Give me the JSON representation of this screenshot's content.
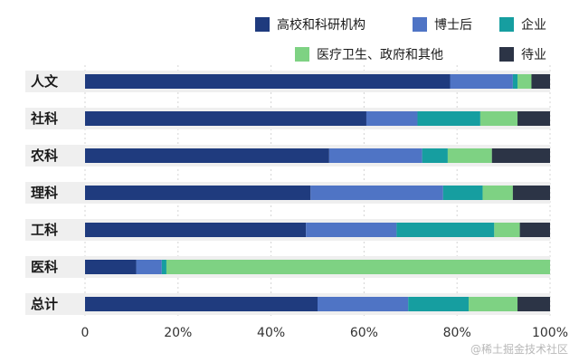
{
  "chart_data": {
    "type": "bar",
    "orientation": "horizontal",
    "stacked": true,
    "normalized": true,
    "categories": [
      "人文",
      "社科",
      "农科",
      "理科",
      "工科",
      "医科",
      "总计"
    ],
    "series": [
      {
        "name": "高校和科研机构",
        "color": "#1f3b7e",
        "values": [
          78.5,
          60.5,
          52.5,
          48.5,
          47.5,
          11,
          50
        ]
      },
      {
        "name": "博士后",
        "color": "#4f74c5",
        "values": [
          13.5,
          11,
          20,
          28.5,
          19.5,
          5.5,
          19.5
        ]
      },
      {
        "name": "企业",
        "color": "#169ea0",
        "values": [
          1,
          13.5,
          5.5,
          8.5,
          21,
          1,
          13
        ]
      },
      {
        "name": "医疗卫生、政府和其他",
        "color": "#7ed283",
        "values": [
          3,
          8,
          9.5,
          6.5,
          5.5,
          82.5,
          10.5
        ]
      },
      {
        "name": "待业",
        "color": "#2c3446",
        "values": [
          4,
          7,
          12.5,
          8,
          6.5,
          0,
          7
        ]
      }
    ],
    "x_ticks": [
      "0",
      "20%",
      "40%",
      "60%",
      "80%",
      "100%"
    ],
    "xlim": [
      0,
      100
    ],
    "legend_position": "top-right",
    "grid": true
  },
  "watermark": "@稀土掘金技术社区"
}
